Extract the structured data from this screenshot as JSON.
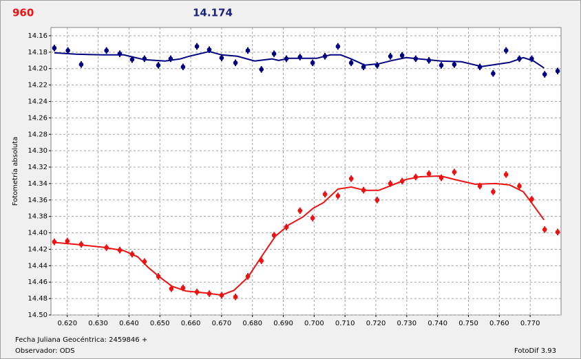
{
  "header": {
    "label": "960",
    "value_text": "14.174"
  },
  "chart_data": {
    "type": "scatter",
    "y_label": "Fotometría absoluta",
    "xlim": [
      0.6147,
      0.78
    ],
    "ylim": [
      14.15,
      14.5
    ],
    "y_inverted": true,
    "grid": true,
    "xticks": [
      {
        "value": 0.62,
        "label": "0.620"
      },
      {
        "value": 0.63,
        "label": "0.630"
      },
      {
        "value": 0.64,
        "label": "0.640"
      },
      {
        "value": 0.65,
        "label": "0.650"
      },
      {
        "value": 0.66,
        "label": "0.660"
      },
      {
        "value": 0.67,
        "label": "0.670"
      },
      {
        "value": 0.68,
        "label": "0.680"
      },
      {
        "value": 0.69,
        "label": "0.690"
      },
      {
        "value": 0.7,
        "label": "0.700"
      },
      {
        "value": 0.71,
        "label": "0.710"
      },
      {
        "value": 0.72,
        "label": "0.720"
      },
      {
        "value": 0.73,
        "label": "0.730"
      },
      {
        "value": 0.74,
        "label": "0.740"
      },
      {
        "value": 0.75,
        "label": "0.750"
      },
      {
        "value": 0.76,
        "label": "0.760"
      },
      {
        "value": 0.77,
        "label": "0.770"
      }
    ],
    "yticks": [
      14.16,
      14.18,
      {
        "value": 14.2,
        "label": "14.20"
      },
      14.22,
      14.24,
      14.26,
      14.28,
      {
        "value": 14.3,
        "label": "14.30"
      },
      14.32,
      14.34,
      14.36,
      14.38,
      {
        "value": 14.4,
        "label": "14.40"
      },
      14.42,
      14.44,
      14.46,
      14.48,
      {
        "value": 14.5,
        "label": "14.50"
      }
    ],
    "series": [
      {
        "color": "#000080",
        "error": 0.004,
        "x": [
          0.6158,
          0.6202,
          0.6245,
          0.6327,
          0.637,
          0.641,
          0.645,
          0.6495,
          0.6535,
          0.6575,
          0.662,
          0.666,
          0.67,
          0.6745,
          0.6785,
          0.6829,
          0.687,
          0.691,
          0.6954,
          0.6995,
          0.7035,
          0.7077,
          0.712,
          0.716,
          0.7204,
          0.7247,
          0.7285,
          0.7329,
          0.7372,
          0.7412,
          0.7454,
          0.7537,
          0.758,
          0.7622,
          0.7665,
          0.7705,
          0.7747,
          0.7789
        ],
        "values": [
          14.175,
          14.178,
          14.195,
          14.178,
          14.182,
          14.189,
          14.188,
          14.196,
          14.188,
          14.198,
          14.173,
          14.177,
          14.187,
          14.193,
          14.178,
          14.201,
          14.182,
          14.188,
          14.186,
          14.193,
          14.185,
          14.173,
          14.193,
          14.198,
          14.196,
          14.185,
          14.184,
          14.188,
          14.19,
          14.196,
          14.195,
          14.198,
          14.206,
          14.178,
          14.188,
          14.188,
          14.207,
          14.203
        ]
      },
      {
        "color": "#ee1111",
        "error": 0.004,
        "x": [
          0.6158,
          0.62,
          0.6245,
          0.6327,
          0.637,
          0.641,
          0.645,
          0.6495,
          0.6537,
          0.6575,
          0.662,
          0.666,
          0.67,
          0.6745,
          0.6785,
          0.6829,
          0.687,
          0.691,
          0.6954,
          0.6995,
          0.7035,
          0.7077,
          0.712,
          0.716,
          0.7204,
          0.7247,
          0.7285,
          0.7329,
          0.7372,
          0.7412,
          0.7454,
          0.7537,
          0.758,
          0.7622,
          0.7665,
          0.7705,
          0.7747,
          0.7789
        ],
        "values": [
          14.411,
          14.41,
          14.414,
          14.418,
          14.421,
          14.426,
          14.435,
          14.453,
          14.468,
          14.467,
          14.472,
          14.474,
          14.476,
          14.478,
          14.453,
          14.434,
          14.403,
          14.393,
          14.373,
          14.382,
          14.353,
          14.355,
          14.334,
          14.348,
          14.36,
          14.34,
          14.337,
          14.332,
          14.328,
          14.333,
          14.326,
          14.343,
          14.35,
          14.329,
          14.343,
          14.359,
          14.396,
          14.399
        ]
      }
    ],
    "curves": [
      {
        "color": "#000080",
        "x": [
          0.6158,
          0.6227,
          0.6316,
          0.6383,
          0.645,
          0.6517,
          0.6566,
          0.6595,
          0.666,
          0.67,
          0.6751,
          0.6807,
          0.6863,
          0.6885,
          0.6919,
          0.7008,
          0.7053,
          0.7086,
          0.712,
          0.7164,
          0.7209,
          0.7254,
          0.7298,
          0.7343,
          0.741,
          0.7477,
          0.7543,
          0.7588,
          0.7633,
          0.7678,
          0.7711,
          0.7745
        ],
        "values": [
          14.1808,
          14.1825,
          14.1833,
          14.1833,
          14.1892,
          14.1908,
          14.1883,
          14.185,
          14.1792,
          14.1833,
          14.185,
          14.1908,
          14.1883,
          14.19,
          14.1875,
          14.1875,
          14.1833,
          14.1833,
          14.1883,
          14.1958,
          14.1942,
          14.19,
          14.1867,
          14.1883,
          14.1908,
          14.1917,
          14.1975,
          14.195,
          14.1925,
          14.1867,
          14.1908,
          14.1992
        ]
      },
      {
        "color": "#ee1111",
        "x": [
          0.6158,
          0.6227,
          0.6316,
          0.6383,
          0.6428,
          0.6461,
          0.6495,
          0.6539,
          0.6584,
          0.6651,
          0.67,
          0.674,
          0.6785,
          0.6829,
          0.6874,
          0.6919,
          0.6963,
          0.6997,
          0.703,
          0.7077,
          0.712,
          0.7164,
          0.7209,
          0.7254,
          0.7298,
          0.7343,
          0.741,
          0.7454,
          0.7521,
          0.7588,
          0.7633,
          0.7678,
          0.7711,
          0.7745
        ],
        "values": [
          14.4117,
          14.414,
          14.4175,
          14.4217,
          14.4292,
          14.4417,
          14.4525,
          14.465,
          14.4708,
          14.4733,
          14.4758,
          14.47,
          14.4542,
          14.4292,
          14.4042,
          14.39,
          14.3808,
          14.37,
          14.3633,
          14.3467,
          14.3442,
          14.3483,
          14.3483,
          14.3417,
          14.335,
          14.3317,
          14.3308,
          14.335,
          14.3408,
          14.34,
          14.3417,
          14.35,
          14.3667,
          14.3842
        ]
      }
    ]
  },
  "footer": {
    "date_line": "Fecha Juliana Geocéntrica: 2459846 +",
    "observer": "Observador: ODS",
    "software": "FotoDif 3.93"
  }
}
